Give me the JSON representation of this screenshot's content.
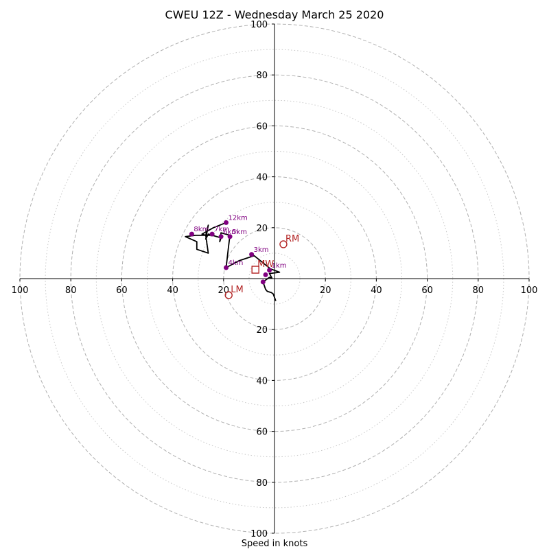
{
  "chart_data": {
    "type": "hodograph",
    "title": "CWEU 12Z - Wednesday March 25 2020",
    "xlabel": "Speed in knots",
    "units": "knots",
    "range": [
      -100,
      100
    ],
    "rings_major": [
      20,
      40,
      60,
      80,
      100
    ],
    "rings_minor": [
      10,
      30,
      50,
      70,
      90
    ],
    "ticks_x": [
      "100",
      "80",
      "60",
      "40",
      "20",
      "20",
      "40",
      "60",
      "80",
      "100"
    ],
    "ticks_x_values": [
      -100,
      -80,
      -60,
      -40,
      -20,
      20,
      40,
      60,
      80,
      100
    ],
    "ticks_y": [
      "100",
      "80",
      "60",
      "40",
      "20",
      "20",
      "40",
      "60",
      "80",
      "100"
    ],
    "ticks_y_values": [
      100,
      80,
      60,
      40,
      20,
      -20,
      -40,
      -60,
      -80,
      -100
    ],
    "grid": true,
    "colors": {
      "trace": "#000000",
      "height_marker": "#800080",
      "storm_motion": "#b22222",
      "grid_major": "#b0b0b0",
      "grid_minor": "#c8c8c8",
      "axis": "#000000"
    },
    "hodograph_trace": [
      {
        "u": 0.5,
        "v": -8.8
      },
      {
        "u": -0.5,
        "v": -6
      },
      {
        "u": -1.2,
        "v": -5.5
      },
      {
        "u": -2.8,
        "v": -5
      },
      {
        "u": -3.5,
        "v": -4.2
      },
      {
        "u": -4.5,
        "v": -1.3
      },
      {
        "u": -2,
        "v": 0.5
      },
      {
        "u": -1,
        "v": 0.2
      },
      {
        "u": -2,
        "v": 2
      },
      {
        "u": 2,
        "v": 2.5
      },
      {
        "u": -1.5,
        "v": 3.8
      },
      {
        "u": -8,
        "v": 9
      },
      {
        "u": -14,
        "v": 7
      },
      {
        "u": -19,
        "v": 4.3
      },
      {
        "u": -18,
        "v": 13
      },
      {
        "u": -17.5,
        "v": 17
      },
      {
        "u": -21,
        "v": 18
      },
      {
        "u": -21.5,
        "v": 14.5
      },
      {
        "u": -21,
        "v": 16
      },
      {
        "u": -26,
        "v": 17.5
      },
      {
        "u": -27,
        "v": 15.5
      },
      {
        "u": -26,
        "v": 21
      },
      {
        "u": -27,
        "v": 17
      },
      {
        "u": -24,
        "v": 17
      },
      {
        "u": -31,
        "v": 17
      },
      {
        "u": -35,
        "v": 16.5
      },
      {
        "u": -30.5,
        "v": 14.5
      },
      {
        "u": -30.5,
        "v": 11.5
      },
      {
        "u": -26,
        "v": 10
      },
      {
        "u": -27,
        "v": 17
      },
      {
        "u": -28.5,
        "v": 17.5
      },
      {
        "u": -24,
        "v": 20
      },
      {
        "u": -19,
        "v": 22
      }
    ],
    "height_markers": [
      {
        "label": "",
        "u": -4.5,
        "v": -1.3
      },
      {
        "label": "",
        "u": -3.5,
        "v": 1.5
      },
      {
        "label": "1km",
        "u": -2,
        "v": 3.3
      },
      {
        "label": "3km",
        "u": -9,
        "v": 9.5
      },
      {
        "label": "4km",
        "u": -19,
        "v": 4.3
      },
      {
        "label": "5km",
        "u": -17.5,
        "v": 16.5
      },
      {
        "label": "6km",
        "u": -21,
        "v": 16.5
      },
      {
        "label": "7km",
        "u": -24.5,
        "v": 17.5
      },
      {
        "label": "8km",
        "u": -32.5,
        "v": 17.5
      },
      {
        "label": "12km",
        "u": -19,
        "v": 22
      }
    ],
    "storm_motion": [
      {
        "label": "RM",
        "u": 3.5,
        "v": 13.5,
        "marker": "circle"
      },
      {
        "label": "LM",
        "u": -18,
        "v": -6.5,
        "marker": "circle"
      },
      {
        "label": "MW",
        "u": -7.5,
        "v": 3.5,
        "marker": "square"
      }
    ]
  }
}
